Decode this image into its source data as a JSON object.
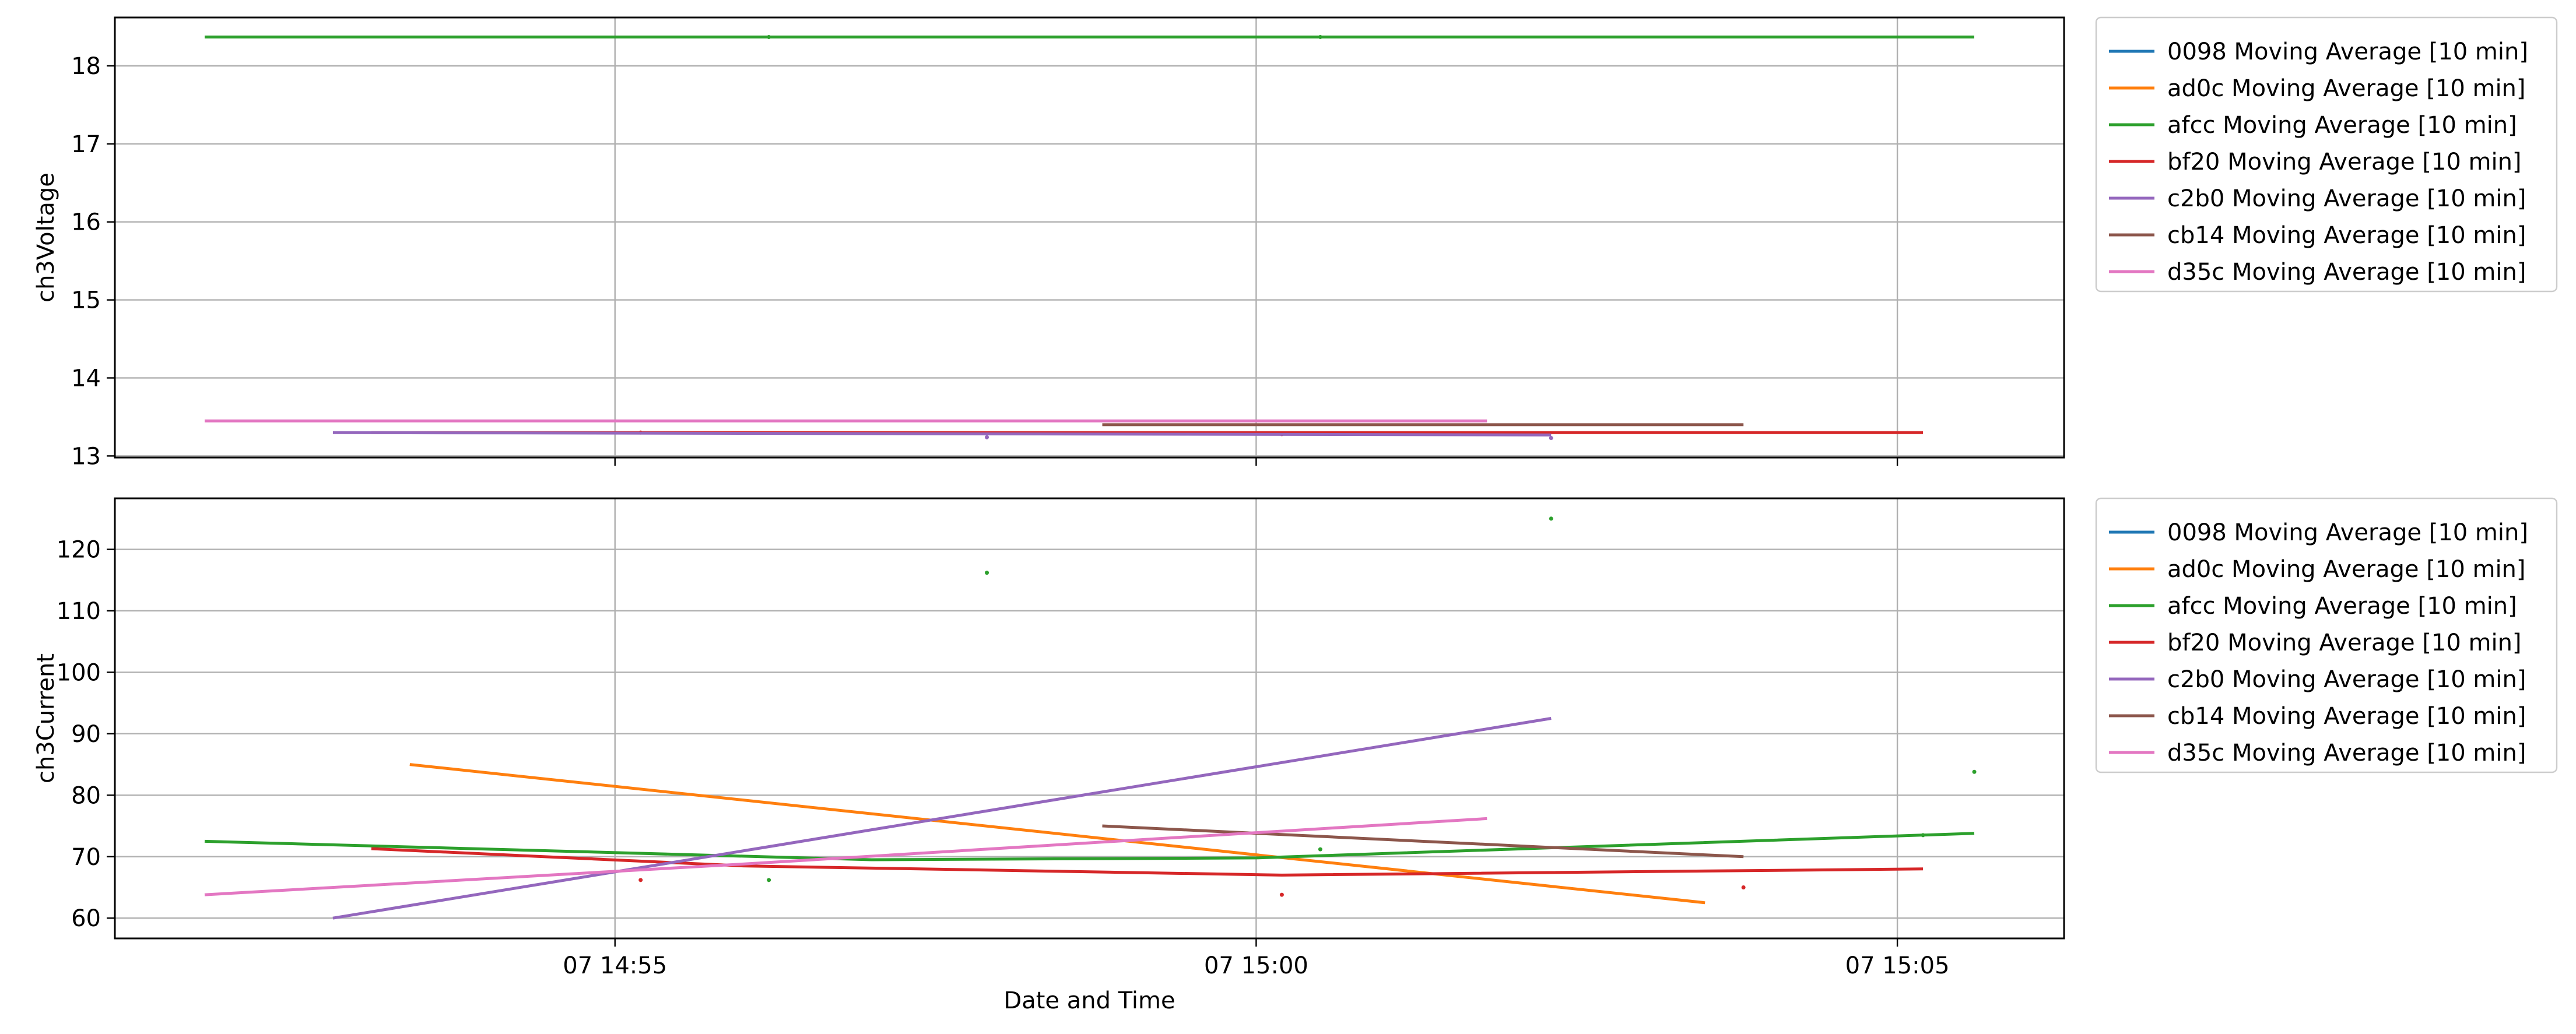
{
  "chart_data": [
    {
      "type": "line",
      "title": "",
      "xlabel": "",
      "ylabel": "ch3Voltage",
      "ylim": [
        12.98,
        18.62
      ],
      "yticks": [
        13,
        14,
        15,
        16,
        17,
        18
      ],
      "xlim": [
        "2024-01-07 14:51:06",
        "2024-01-07 15:06:18"
      ],
      "xticks": [
        {
          "t": "2024-01-07 14:55:00",
          "label": "07 14:55"
        },
        {
          "t": "2024-01-07 15:00:00",
          "label": "07 15:00"
        },
        {
          "t": "2024-01-07 15:05:00",
          "label": "07 15:05"
        }
      ],
      "show_xticklabels": false,
      "grid": true,
      "legend_position": "outside-right",
      "series": [
        {
          "name": "0098 Moving Average [10 min]",
          "color": "#1f77b4",
          "points": []
        },
        {
          "name": "ad0c Moving Average [10 min]",
          "color": "#ff7f0e",
          "points": []
        },
        {
          "name": "afcc Moving Average [10 min]",
          "color": "#2ca02c",
          "points": [
            [
              "2024-01-07 14:51:48",
              18.37
            ],
            [
              "2024-01-07 15:05:36",
              18.37
            ]
          ],
          "markers": [
            [
              "2024-01-07 14:56:12",
              18.37
            ],
            [
              "2024-01-07 15:00:30",
              18.37
            ]
          ]
        },
        {
          "name": "bf20 Moving Average [10 min]",
          "color": "#d62728",
          "points": [
            [
              "2024-01-07 14:53:06",
              13.3
            ],
            [
              "2024-01-07 15:05:12",
              13.3
            ]
          ],
          "markers": [
            [
              "2024-01-07 14:55:12",
              13.3
            ],
            [
              "2024-01-07 15:00:12",
              13.28
            ]
          ]
        },
        {
          "name": "c2b0 Moving Average [10 min]",
          "color": "#9467bd",
          "points": [
            [
              "2024-01-07 14:52:48",
              13.3
            ],
            [
              "2024-01-07 15:02:18",
              13.27
            ]
          ],
          "markers": [
            [
              "2024-01-07 14:57:54",
              13.24
            ],
            [
              "2024-01-07 15:02:18",
              13.23
            ]
          ]
        },
        {
          "name": "cb14 Moving Average [10 min]",
          "color": "#8c564b",
          "points": [
            [
              "2024-01-07 14:58:48",
              13.4
            ],
            [
              "2024-01-07 15:03:48",
              13.4
            ]
          ],
          "markers": []
        },
        {
          "name": "d35c Moving Average [10 min]",
          "color": "#e377c2",
          "points": [
            [
              "2024-01-07 14:51:48",
              13.45
            ],
            [
              "2024-01-07 15:01:48",
              13.45
            ]
          ],
          "markers": []
        }
      ]
    },
    {
      "type": "line",
      "title": "",
      "xlabel": "Date and Time",
      "ylabel": "ch3Current",
      "ylim": [
        56.7,
        128.3
      ],
      "yticks": [
        60,
        70,
        80,
        90,
        100,
        110,
        120
      ],
      "xlim": [
        "2024-01-07 14:51:06",
        "2024-01-07 15:06:18"
      ],
      "xticks": [
        {
          "t": "2024-01-07 14:55:00",
          "label": "07 14:55"
        },
        {
          "t": "2024-01-07 15:00:00",
          "label": "07 15:00"
        },
        {
          "t": "2024-01-07 15:05:00",
          "label": "07 15:05"
        }
      ],
      "show_xticklabels": true,
      "grid": true,
      "legend_position": "outside-right",
      "series": [
        {
          "name": "0098 Moving Average [10 min]",
          "color": "#1f77b4",
          "points": []
        },
        {
          "name": "ad0c Moving Average [10 min]",
          "color": "#ff7f0e",
          "points": [
            [
              "2024-01-07 14:53:24",
              85.0
            ],
            [
              "2024-01-07 15:03:30",
              62.5
            ]
          ],
          "markers": []
        },
        {
          "name": "afcc Moving Average [10 min]",
          "color": "#2ca02c",
          "points": [
            [
              "2024-01-07 14:51:48",
              72.5
            ],
            [
              "2024-01-07 14:57:00",
              69.5
            ],
            [
              "2024-01-07 15:00:00",
              69.8
            ],
            [
              "2024-01-07 15:05:36",
              73.8
            ]
          ],
          "markers": [
            [
              "2024-01-07 14:56:12",
              66.2
            ],
            [
              "2024-01-07 14:57:54",
              116.2
            ],
            [
              "2024-01-07 15:00:30",
              71.2
            ],
            [
              "2024-01-07 15:02:18",
              125.0
            ],
            [
              "2024-01-07 15:05:12",
              73.5
            ],
            [
              "2024-01-07 15:05:36",
              83.8
            ]
          ]
        },
        {
          "name": "bf20 Moving Average [10 min]",
          "color": "#d62728",
          "points": [
            [
              "2024-01-07 14:53:06",
              71.3
            ],
            [
              "2024-01-07 14:56:00",
              68.5
            ],
            [
              "2024-01-07 15:00:12",
              67.0
            ],
            [
              "2024-01-07 15:05:12",
              68.0
            ]
          ],
          "markers": [
            [
              "2024-01-07 14:55:12",
              66.2
            ],
            [
              "2024-01-07 15:00:12",
              63.8
            ],
            [
              "2024-01-07 15:03:48",
              65.0
            ]
          ]
        },
        {
          "name": "c2b0 Moving Average [10 min]",
          "color": "#9467bd",
          "points": [
            [
              "2024-01-07 14:52:48",
              60.0
            ],
            [
              "2024-01-07 15:02:18",
              92.5
            ]
          ],
          "markers": []
        },
        {
          "name": "cb14 Moving Average [10 min]",
          "color": "#8c564b",
          "points": [
            [
              "2024-01-07 14:58:48",
              75.0
            ],
            [
              "2024-01-07 15:03:48",
              70.0
            ]
          ],
          "markers": []
        },
        {
          "name": "d35c Moving Average [10 min]",
          "color": "#e377c2",
          "points": [
            [
              "2024-01-07 14:51:48",
              63.8
            ],
            [
              "2024-01-07 14:56:00",
              68.8
            ],
            [
              "2024-01-07 15:01:48",
              76.2
            ]
          ],
          "markers": []
        }
      ]
    }
  ]
}
